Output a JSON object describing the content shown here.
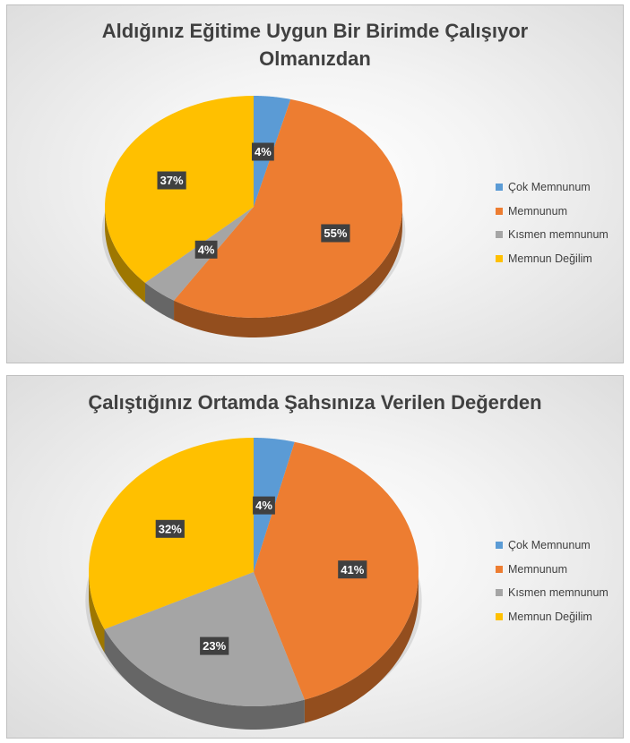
{
  "charts": [
    {
      "title_line1": "Aldığınız Eğitime Uygun Bir Birimde Çalışıyor",
      "title_line2": "Olmanızdan",
      "legend": [
        "Çok Memnunum",
        "Memnunum",
        "Kısmen memnunum",
        "Memnun Değilim"
      ]
    },
    {
      "title_line1": "Çalıştığınız Ortamda Şahsınıza Verilen Değerden",
      "title_line2": "",
      "legend": [
        "Çok Memnunum",
        "Memnunum",
        "Kısmen memnunum",
        "Memnun Değilim"
      ]
    }
  ],
  "chart_data": [
    {
      "type": "pie",
      "title": "Aldığınız Eğitime Uygun Bir Birimde Çalışıyor Olmanızdan",
      "categories": [
        "Çok Memnunum",
        "Memnunum",
        "Kısmen memnunum",
        "Memnun Değilim"
      ],
      "values": [
        4,
        55,
        4,
        37
      ],
      "labels": [
        "4%",
        "55%",
        "4%",
        "37%"
      ],
      "colors": [
        "#5b9bd5",
        "#ed7d31",
        "#a5a5a5",
        "#ffc000"
      ],
      "legend_position": "right"
    },
    {
      "type": "pie",
      "title": "Çalıştığınız Ortamda Şahsınıza Verilen Değerden",
      "categories": [
        "Çok Memnunum",
        "Memnunum",
        "Kısmen memnunum",
        "Memnun Değilim"
      ],
      "values": [
        4,
        41,
        23,
        32
      ],
      "labels": [
        "4%",
        "41%",
        "23%",
        "32%"
      ],
      "colors": [
        "#5b9bd5",
        "#ed7d31",
        "#a5a5a5",
        "#ffc000"
      ],
      "legend_position": "right"
    }
  ]
}
